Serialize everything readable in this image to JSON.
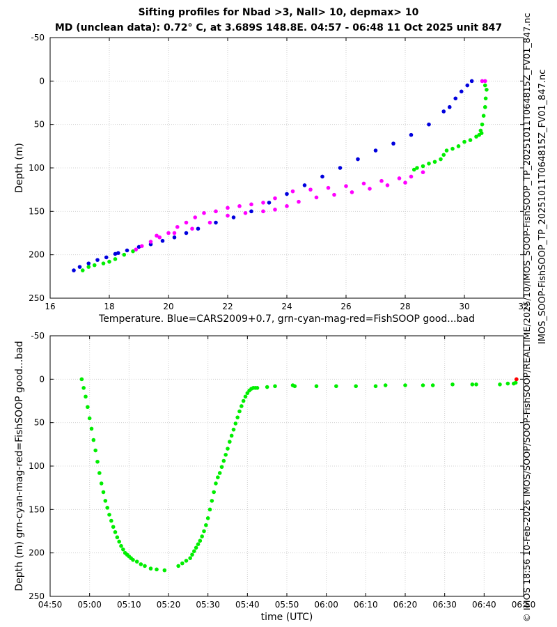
{
  "title_line1": "Sifting profiles for Nbad >3, Nall> 10, depmax> 10",
  "title_line2": "MD (unclean data): 0.72° C, at 3.689S 148.8E. 04:57 - 06:48 11 Oct 2025 unit 847",
  "side_label_top": "IMOS_SOOP-FishSOOP_TP_20251011T064815Z_FV01_847.nc",
  "side_label_bottom": "© IMOS 18:56 10-Feb-2026 IMOS/SOOP/SOOP-FishSOOP/REALTIME/2025/10/IMOS_SOOP-FishSOOP_TP_20251011T064815Z_FV01_847.nc",
  "colors": {
    "blue": "#0000dd",
    "green": "#00ee00",
    "magenta": "#ff00ff",
    "red": "#ff0000",
    "grid": "#d0d0d0"
  },
  "chart_data": [
    {
      "type": "scatter",
      "title": "",
      "xlabel": "Temperature. Blue=CARS2009+0.7, grn-cyan-mag-red=FishSOOP good...bad",
      "ylabel": "Depth (m)",
      "xlim": [
        16,
        32
      ],
      "ylim": [
        -50,
        250
      ],
      "y_reversed": true,
      "xticks": [
        "16",
        "18",
        "20",
        "22",
        "24",
        "26",
        "28",
        "30",
        "32"
      ],
      "yticks": [
        "-50",
        "0",
        "50",
        "100",
        "150",
        "200",
        "250"
      ],
      "series": [
        {
          "name": "CARS2009+0.7",
          "color": "blue",
          "x": [
            30.25,
            30.1,
            29.9,
            29.7,
            29.5,
            29.3,
            28.8,
            28.2,
            27.6,
            27.0,
            26.4,
            25.8,
            25.2,
            24.6,
            24.0,
            23.4,
            22.8,
            22.2,
            21.6,
            21.0,
            20.6,
            20.2,
            19.8,
            19.4,
            19.0,
            18.6,
            18.3,
            18.2,
            17.9,
            17.6,
            17.3,
            17.0,
            16.8
          ],
          "y": [
            0,
            5,
            12,
            20,
            30,
            35,
            50,
            62,
            72,
            80,
            90,
            100,
            110,
            120,
            130,
            140,
            150,
            157,
            163,
            170,
            175,
            180,
            184,
            188,
            191,
            195,
            198,
            199,
            203,
            206,
            210,
            214,
            218
          ]
        },
        {
          "name": "FishSOOP good (green)",
          "color": "green",
          "x": [
            30.7,
            30.75,
            30.72,
            30.7,
            30.65,
            30.6,
            30.55,
            30.58,
            30.5,
            30.4,
            30.2,
            30.0,
            29.8,
            29.6,
            29.4,
            29.3,
            29.2,
            29.0,
            28.8,
            28.6,
            28.4,
            28.3,
            18.8,
            18.5,
            18.2,
            18.0,
            17.8,
            17.5,
            17.3,
            17.1
          ],
          "y": [
            5,
            10,
            20,
            30,
            40,
            50,
            57,
            60,
            62,
            64,
            68,
            70,
            75,
            78,
            80,
            85,
            90,
            93,
            95,
            98,
            100,
            102,
            196,
            200,
            205,
            208,
            210,
            212,
            214,
            218
          ]
        },
        {
          "name": "FishSOOP suspect (magenta)",
          "color": "magenta",
          "x": [
            30.6,
            30.7,
            28.6,
            28.2,
            27.8,
            27.2,
            26.6,
            26.0,
            25.4,
            24.8,
            24.2,
            23.6,
            23.2,
            22.8,
            22.4,
            22.0,
            21.6,
            21.2,
            20.9,
            20.6,
            20.3,
            20.0,
            19.7,
            19.4,
            19.1,
            18.9,
            28.0,
            27.4,
            26.8,
            26.2,
            25.6,
            25.0,
            24.4,
            24.0,
            23.6,
            23.2,
            22.6,
            22.0,
            21.4,
            20.8,
            20.2,
            19.6
          ],
          "y": [
            0,
            0,
            105,
            110,
            112,
            115,
            118,
            121,
            123,
            125,
            127,
            135,
            140,
            142,
            144,
            146,
            150,
            152,
            157,
            163,
            168,
            175,
            180,
            185,
            190,
            194,
            117,
            120,
            124,
            128,
            131,
            134,
            139,
            144,
            148,
            150,
            152,
            155,
            163,
            170,
            175,
            178
          ]
        },
        {
          "name": "FishSOOP bad (red)",
          "color": "red",
          "x": [],
          "y": []
        }
      ]
    },
    {
      "type": "scatter",
      "title": "",
      "xlabel": "time (UTC)",
      "ylabel": "Depth (m) grn-cyan-mag-red=FishSOOP good...bad",
      "xlim_minutes": [
        290,
        410
      ],
      "ylim": [
        -50,
        250
      ],
      "y_reversed": true,
      "xticks": [
        "04:50",
        "05:00",
        "05:10",
        "05:20",
        "05:30",
        "05:40",
        "05:50",
        "06:00",
        "06:10",
        "06:20",
        "06:30",
        "06:40",
        "06:50"
      ],
      "yticks": [
        "-50",
        "0",
        "50",
        "100",
        "150",
        "200",
        "250"
      ],
      "series": [
        {
          "name": "FishSOOP good (green)",
          "color": "green",
          "minutes": [
            298,
            298.5,
            299,
            299.5,
            300,
            300.5,
            301,
            301.5,
            302,
            302.5,
            303,
            303.5,
            304,
            304.5,
            305,
            305.5,
            306,
            306.5,
            307,
            307.5,
            308,
            308.5,
            309,
            309.5,
            310,
            310.5,
            311,
            312,
            313,
            314,
            315.5,
            317,
            319,
            322.5,
            323.5,
            324.5,
            325.5,
            326,
            326.5,
            327,
            327.5,
            328,
            328.5,
            329,
            329.5,
            330,
            330.5,
            331,
            331.5,
            332,
            332.5,
            333,
            333.5,
            334,
            334.5,
            335,
            335.5,
            336,
            336.5,
            337,
            337.5,
            338,
            338.5,
            339,
            339.5,
            340,
            340.5,
            341,
            341.5,
            342,
            342.5,
            345,
            347,
            351.5,
            352,
            357.5,
            362.5,
            367.5,
            372.5,
            375,
            380,
            384.5,
            387,
            392,
            397,
            398,
            404,
            406,
            407.5,
            408
          ],
          "depth": [
            0,
            10,
            20,
            32,
            45,
            57,
            70,
            82,
            95,
            108,
            120,
            130,
            140,
            148,
            156,
            163,
            170,
            176,
            182,
            187,
            192,
            196,
            200,
            202,
            204,
            206,
            208,
            210,
            213,
            215,
            218,
            219,
            220,
            215,
            212,
            209,
            206,
            202,
            198,
            194,
            190,
            186,
            181,
            175,
            168,
            160,
            150,
            140,
            130,
            120,
            113,
            108,
            101,
            94,
            87,
            80,
            72,
            65,
            58,
            51,
            44,
            37,
            31,
            25,
            20,
            16,
            13,
            11,
            10,
            10,
            10,
            9,
            8,
            7,
            8,
            8,
            8,
            8,
            8,
            7,
            7,
            7,
            7,
            6,
            6,
            6,
            6,
            5,
            5,
            4
          ]
        },
        {
          "name": "FishSOOP bad (red)",
          "color": "red",
          "minutes": [
            408.2
          ],
          "depth": [
            0
          ]
        }
      ]
    }
  ]
}
